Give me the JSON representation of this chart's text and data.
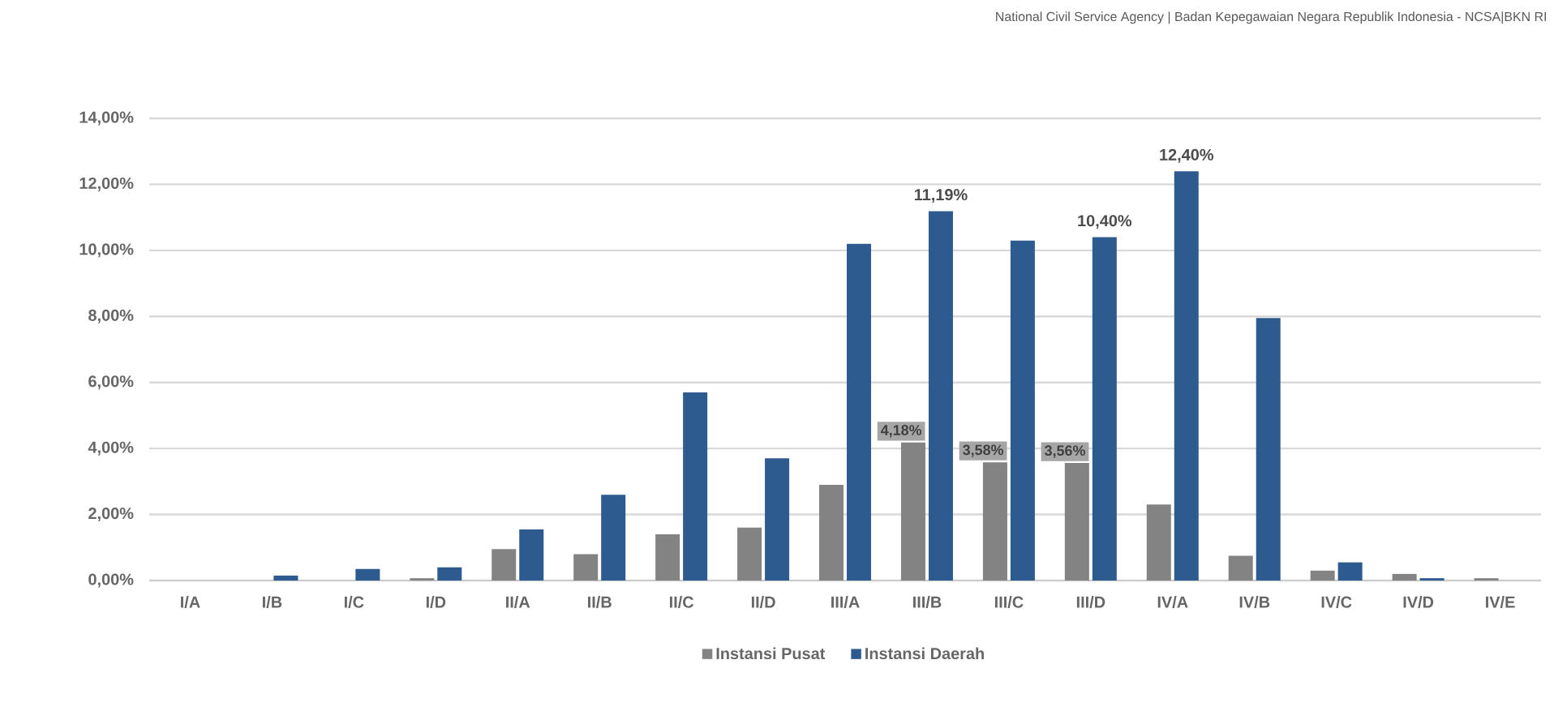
{
  "chart_data": {
    "type": "bar",
    "annotations": [
      "National Civil Service Agency | Badan Kepegawaian Negara Republik Indonesia  - NCSA|BKN RI"
    ],
    "categories": [
      "I/A",
      "I/B",
      "I/C",
      "I/D",
      "II/A",
      "II/B",
      "II/C",
      "II/D",
      "III/A",
      "III/B",
      "III/C",
      "III/D",
      "IV/A",
      "IV/B",
      "IV/C",
      "IV/D",
      "IV/E"
    ],
    "series": [
      {
        "name": "Instansi Pusat",
        "color": "#838383",
        "values": [
          0,
          0,
          0,
          0.07,
          0.95,
          0.8,
          1.4,
          1.6,
          2.9,
          4.18,
          3.58,
          3.56,
          2.3,
          0.75,
          0.3,
          0.2,
          0.07
        ],
        "value_labels": [
          null,
          null,
          null,
          null,
          null,
          null,
          null,
          null,
          null,
          "4,18%",
          "3,58%",
          "3,56%",
          null,
          null,
          null,
          null,
          null
        ]
      },
      {
        "name": "Instansi Daerah",
        "color": "#2e5b8f",
        "values": [
          0,
          0.15,
          0.35,
          0.4,
          1.55,
          2.6,
          5.7,
          3.7,
          10.2,
          11.19,
          10.3,
          10.4,
          12.4,
          7.95,
          0.55,
          0.07,
          0
        ],
        "value_labels": [
          null,
          null,
          null,
          null,
          null,
          null,
          null,
          null,
          null,
          "11,19%",
          null,
          "10,40%",
          "12,40%",
          null,
          null,
          null,
          null
        ]
      }
    ],
    "ylim": [
      0,
      14
    ],
    "yticks": [
      {
        "value": 0,
        "label": "0,00%"
      },
      {
        "value": 2,
        "label": "2,00%"
      },
      {
        "value": 4,
        "label": "4,00%"
      },
      {
        "value": 6,
        "label": "6,00%"
      },
      {
        "value": 8,
        "label": "8,00%"
      },
      {
        "value": 10,
        "label": "10,00%"
      },
      {
        "value": 12,
        "label": "12,00%"
      },
      {
        "value": 14,
        "label": "14,00%"
      }
    ],
    "grid": "y",
    "legend": "bottom"
  }
}
